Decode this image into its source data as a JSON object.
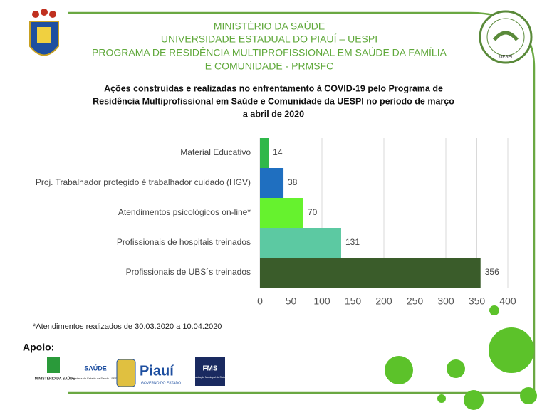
{
  "header": {
    "lines": [
      "MINISTÉRIO DA SAÚDE",
      "UNIVERSIDADE ESTADUAL DO PIAUÍ – UESPI",
      "PROGRAMA DE RESIDÊNCIA MULTIPROFISSIONAL EM SAÚDE DA FAMÍLIA",
      "E COMUNIDADE - PRMSFC"
    ],
    "seal_text": "UESPI"
  },
  "chart_data": {
    "type": "hbar",
    "title": [
      "Ações construídas e realizadas no enfrentamento à COVID-19 pelo Programa de",
      "Residência Multiprofissional em Saúde e Comunidade da UESPI no período de março",
      "a abril de 2020"
    ],
    "categories": [
      "Material Educativo",
      "Proj. Trabalhador protegido é trabalhador cuidado (HGV)",
      "Atendimentos psicológicos on-line*",
      "Profissionais de hospitais treinados",
      "Profissionais de UBS´s treinados"
    ],
    "values": [
      14,
      38,
      70,
      131,
      356
    ],
    "colors": [
      "#2fb84a",
      "#1f6fc0",
      "#66f22e",
      "#5cc9a2",
      "#3a5c2a"
    ],
    "xlim": [
      0,
      400
    ],
    "xticks": [
      0,
      50,
      100,
      150,
      200,
      250,
      300,
      350,
      400
    ],
    "grid": true
  },
  "footnote": "*Atendimentos realizados de 30.03.2020 a 10.04.2020",
  "support": {
    "label": "Apoio:",
    "logos": [
      "MINISTÉRIO DA SAÚDE",
      "SAÚDE",
      "Secretaria de Estado da Saúde / SESAPI",
      "Piauí",
      "GOVERNO DO ESTADO",
      "FMS",
      "Fundação Municipal de Saúde"
    ]
  }
}
